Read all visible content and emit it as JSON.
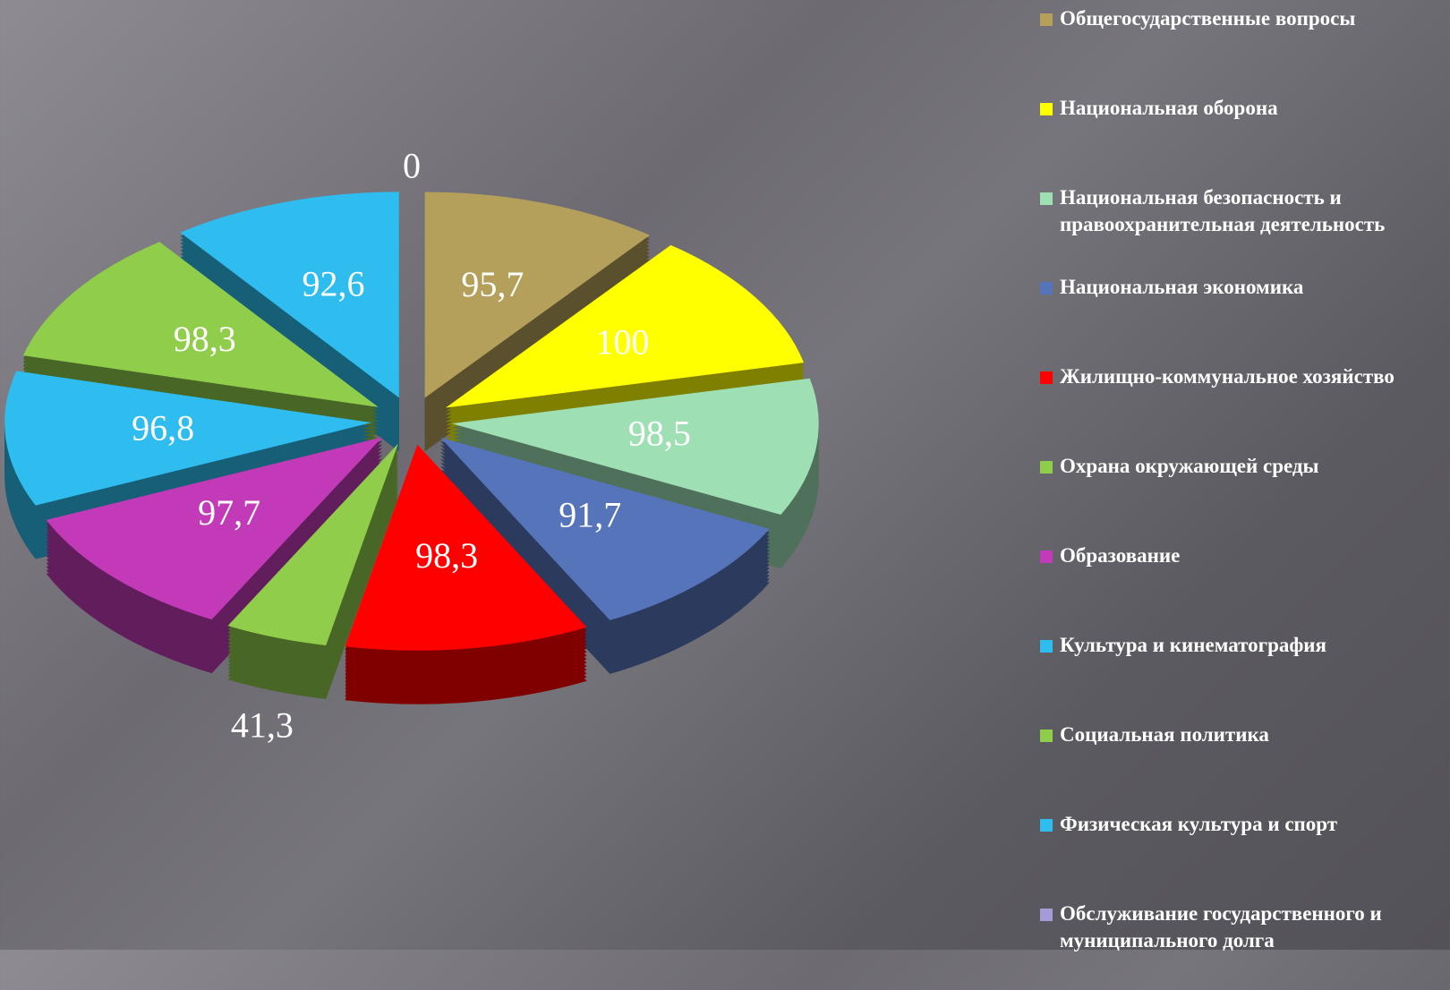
{
  "chart_data": {
    "type": "pie",
    "categories": [
      "Общегосударственные вопросы",
      "Национальная оборона",
      "Национальная безопасность и правоохранительная деятельность",
      "Национальная экономика",
      "Жилищно-коммунальное хозяйство",
      "Охрана окружающей среды",
      "Образование",
      "Культура и кинематография",
      "Социальная политика",
      "Физическая культура и спорт",
      "Обслуживание государственного и муниципального долга"
    ],
    "values": [
      95.7,
      100,
      98.5,
      91.7,
      98.3,
      41.3,
      97.7,
      96.8,
      98.3,
      92.6,
      0
    ],
    "value_labels": [
      "95,7",
      "100",
      "98,5",
      "91,7",
      "98,3",
      "41,3",
      "97,7",
      "96,8",
      "98,3",
      "92,6",
      "0"
    ],
    "colors": [
      "#b4a05a",
      "#ffff00",
      "#9edfb4",
      "#5574b9",
      "#ff0000",
      "#8fcd4b",
      "#c23ab8",
      "#2ebdee",
      "#8fcd4b",
      "#2ebdee",
      "#a59bd6"
    ],
    "legend": "right"
  }
}
